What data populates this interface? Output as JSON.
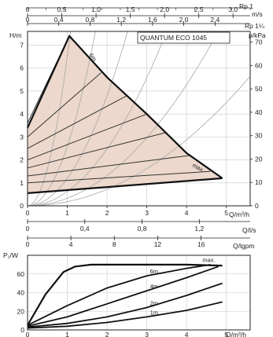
{
  "chart_data": [
    {
      "type": "line",
      "title": "QUANTUM ECO 1045",
      "ylabel": "H/m",
      "ylabel_right": "p/kPa",
      "xlabel": "Q/m³/h",
      "top_axis_1_unit": "m/s",
      "top_axis_2_unit": "Rp 1",
      "top_axis_3_unit": "Rp 1¼",
      "xlim": [
        0,
        5.6
      ],
      "ylim": [
        0,
        7.6
      ],
      "x_ticks": [
        "0",
        "1",
        "2",
        "3",
        "4",
        "5"
      ],
      "y_ticks": [
        "0",
        "1",
        "2",
        "3",
        "4",
        "5",
        "6",
        "7"
      ],
      "y_right_ticks": [
        "0",
        "10",
        "20",
        "30",
        "40",
        "50",
        "60",
        "70"
      ],
      "top_axis_1_ticks": [
        "0",
        "0,5",
        "1,0",
        "1,5",
        "2,0",
        "2,5",
        "3,0"
      ],
      "top_axis_2_ticks": [
        "0",
        "0,4",
        "0,8",
        "1,2",
        "1,6",
        "2,0",
        "2,4"
      ],
      "grid": true,
      "shaded_region": {
        "color": "#ecd8cc",
        "points": [
          [
            0,
            0.55
          ],
          [
            0,
            3.4
          ],
          [
            1.05,
            7.4
          ],
          [
            2.0,
            5.6
          ],
          [
            3.0,
            4.0
          ],
          [
            4.0,
            2.3
          ],
          [
            4.9,
            1.2
          ]
        ]
      },
      "series": [
        {
          "name": "max.",
          "x": [
            0,
            1.05,
            2.0,
            3.0,
            4.0,
            4.9
          ],
          "y": [
            3.4,
            7.4,
            5.6,
            4.0,
            2.3,
            1.2
          ]
        },
        {
          "x": [
            0,
            4.9
          ],
          "y": [
            0.55,
            1.2
          ]
        }
      ],
      "constant_speed_lines": [
        {
          "from": [
            0,
            3.6
          ],
          "to": [
            1.05,
            7.4
          ]
        },
        {
          "from": [
            0,
            3.0
          ],
          "to": [
            1.85,
            5.8
          ]
        },
        {
          "from": [
            0,
            2.5
          ],
          "to": [
            2.5,
            4.8
          ]
        },
        {
          "from": [
            0,
            2.0
          ],
          "to": [
            3.0,
            4.0
          ]
        },
        {
          "from": [
            0,
            1.65
          ],
          "to": [
            3.5,
            3.2
          ]
        },
        {
          "from": [
            0,
            1.3
          ],
          "to": [
            4.1,
            2.2
          ]
        },
        {
          "from": [
            0,
            1.0
          ],
          "to": [
            4.6,
            1.5
          ]
        }
      ],
      "system_curves_k": [
        6.5,
        2.6,
        1.2,
        0.62,
        0.33,
        0.18
      ],
      "annotations": [
        "QUANTUM ECO 1045",
        "max.",
        "6m"
      ]
    },
    {
      "type": "line",
      "ylabel": "P₁/W",
      "xlabel": "Q/m³/h",
      "top_axis_1_unit": "Q/l/s",
      "top_axis_2_unit": "Q/lgpm",
      "xlim": [
        0,
        5.6
      ],
      "ylim": [
        0,
        80
      ],
      "x_ticks": [
        "0",
        "1",
        "2",
        "3",
        "4",
        "5"
      ],
      "y_ticks": [
        "0",
        "20",
        "40",
        "60"
      ],
      "top_axis_1_ticks": [
        "0",
        "0,4",
        "0,8",
        "1,2"
      ],
      "top_axis_2_ticks": [
        "0",
        "4",
        "8",
        "12",
        "16"
      ],
      "grid": true,
      "series": [
        {
          "name": "max.",
          "x": [
            0,
            0.45,
            0.9,
            1.2,
            1.6,
            2.0,
            3.0,
            4.0,
            4.9
          ],
          "y": [
            5,
            38,
            62,
            68,
            70,
            70,
            70,
            70,
            69
          ]
        },
        {
          "name": "6m",
          "x": [
            0,
            1.0,
            2.0,
            3.0,
            4.0,
            4.6
          ],
          "y": [
            5,
            26,
            45,
            58,
            66,
            70
          ]
        },
        {
          "name": "4m",
          "x": [
            0,
            1.0,
            2.0,
            3.0,
            4.0,
            4.8
          ],
          "y": [
            4,
            14,
            28,
            42,
            56,
            68
          ]
        },
        {
          "name": "2m",
          "x": [
            0,
            1.0,
            2.0,
            3.0,
            4.0,
            4.9
          ],
          "y": [
            3,
            7,
            14,
            24,
            37,
            50
          ]
        },
        {
          "name": "1m",
          "x": [
            0,
            1.0,
            2.0,
            3.0,
            4.0,
            4.9
          ],
          "y": [
            2,
            4,
            8,
            14,
            21,
            30
          ]
        }
      ]
    }
  ]
}
